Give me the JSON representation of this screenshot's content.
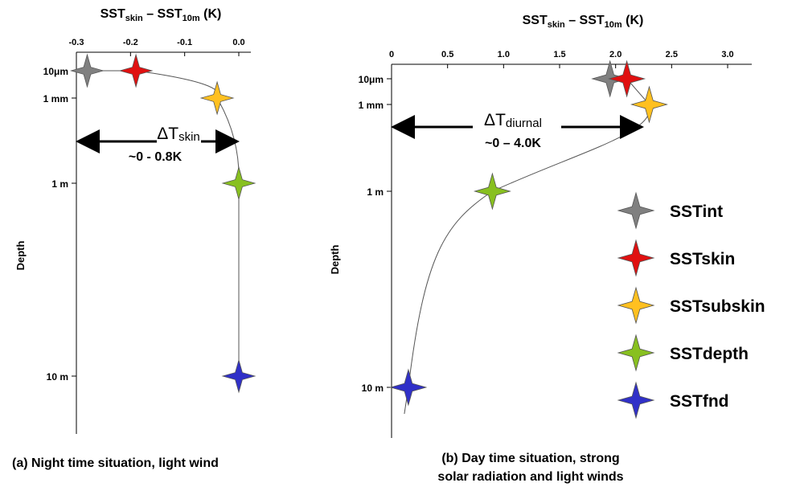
{
  "chart_data": [
    {
      "id": "a",
      "type": "line",
      "x_title": {
        "base1": "SST",
        "sub1": "skin",
        "mid": " – SST",
        "sub2": "10m",
        "tail": " (K)"
      },
      "xlim": [
        -0.3,
        0.0
      ],
      "x_ticks": [
        -0.3,
        -0.2,
        -0.1,
        0.0
      ],
      "x_tick_labels": [
        "-0.3",
        "-0.2",
        "-0.1",
        "0.0"
      ],
      "ylabel": "Depth",
      "y_ticks": [
        {
          "key": "10um",
          "label": "10μm"
        },
        {
          "key": "1mm",
          "label": "1 mm"
        },
        {
          "key": "1m",
          "label": "1 m"
        },
        {
          "key": "10m",
          "label": "10 m"
        }
      ],
      "points": [
        {
          "series": "SSTint",
          "x": -0.28,
          "depth": "10um"
        },
        {
          "series": "SSTskin",
          "x": -0.19,
          "depth": "10um"
        },
        {
          "series": "SSTsubskin",
          "x": -0.04,
          "depth": "1mm"
        },
        {
          "series": "SSTdepth",
          "x": 0.0,
          "depth": "1m"
        },
        {
          "series": "SSTfnd",
          "x": 0.0,
          "depth": "10m"
        }
      ],
      "annotation": {
        "delta": "ΔT",
        "delta_sub": "skin",
        "range": "~0 - 0.8K"
      },
      "caption": "(a) Night time situation, light wind"
    },
    {
      "id": "b",
      "type": "line",
      "x_title": {
        "base1": "SST",
        "sub1": "skin",
        "mid": " – SST",
        "sub2": "10m",
        "tail": " (K)"
      },
      "xlim": [
        0.0,
        3.0
      ],
      "x_ticks": [
        0,
        0.5,
        1.0,
        1.5,
        2.0,
        2.5,
        3.0
      ],
      "x_tick_labels": [
        "0",
        "0.5",
        "1.0",
        "1.5",
        "2.0",
        "2.5",
        "3.0"
      ],
      "ylabel": "Depth",
      "y_ticks": [
        {
          "key": "10um",
          "label": "10μm"
        },
        {
          "key": "1mm",
          "label": "1 mm"
        },
        {
          "key": "1m",
          "label": "1 m"
        },
        {
          "key": "10m",
          "label": "10 m"
        }
      ],
      "points": [
        {
          "series": "SSTint",
          "x": 1.95,
          "depth": "10um"
        },
        {
          "series": "SSTskin",
          "x": 2.1,
          "depth": "10um"
        },
        {
          "series": "SSTsubskin",
          "x": 2.3,
          "depth": "1mm"
        },
        {
          "series": "SSTdepth",
          "x": 0.9,
          "depth": "1m"
        },
        {
          "series": "SSTfnd",
          "x": 0.15,
          "depth": "10m"
        }
      ],
      "annotation": {
        "delta": "ΔT",
        "delta_sub": "diurnal",
        "range": "~0 – 4.0K"
      },
      "caption_lines": [
        "(b) Day time situation, strong",
        "solar radiation and light winds"
      ]
    }
  ],
  "legend": [
    {
      "name": "SSTint",
      "color": "#808080"
    },
    {
      "name": "SSTskin",
      "color": "#e01010"
    },
    {
      "name": "SSTsubskin",
      "color": "#ffc020"
    },
    {
      "name": "SSTdepth",
      "color": "#88c020"
    },
    {
      "name": "SSTfnd",
      "color": "#3030c8"
    }
  ]
}
